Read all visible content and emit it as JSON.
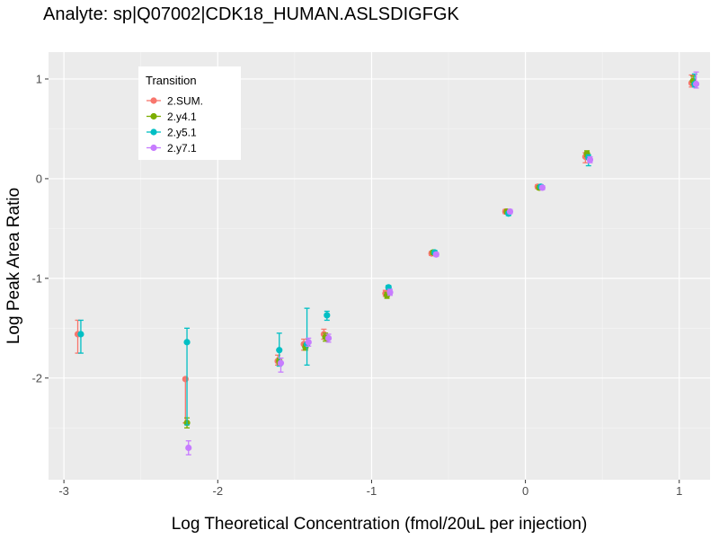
{
  "chart_data": {
    "type": "scatter",
    "title": "Analyte: sp|Q07002|CDK18_HUMAN.ASLSDIGFGK",
    "xlabel": "Log Theoretical Concentration (fmol/20uL per injection)",
    "ylabel": "Log Peak Area Ratio",
    "xlim": [
      -3.1,
      1.2
    ],
    "ylim": [
      -3.02,
      1.27
    ],
    "x_ticks": [
      -3,
      -2,
      -1,
      0,
      1
    ],
    "x_tick_labels": [
      "-3",
      "-2",
      "-1",
      "0",
      "1"
    ],
    "y_ticks": [
      -2,
      -1,
      0,
      1
    ],
    "y_tick_labels": [
      "-2",
      "-1",
      "0",
      "1"
    ],
    "grid": true,
    "legend_title": "Transition",
    "legend_position": "top-left",
    "series": [
      {
        "name": "2.SUM.",
        "color": "#F8766D",
        "points": [
          {
            "x": -2.91,
            "y": -1.56,
            "lo": -1.75,
            "hi": -1.42
          },
          {
            "x": -2.21,
            "y": -2.01,
            "lo": -2.45,
            "hi": -2.01
          },
          {
            "x": -1.61,
            "y": -1.83,
            "lo": -1.87,
            "hi": -1.77
          },
          {
            "x": -1.44,
            "y": -1.66,
            "lo": -1.72,
            "hi": -1.61
          },
          {
            "x": -1.31,
            "y": -1.56,
            "lo": -1.61,
            "hi": -1.51
          },
          {
            "x": -0.91,
            "y": -1.15,
            "lo": -1.18,
            "hi": -1.12
          },
          {
            "x": -0.61,
            "y": -0.75,
            "lo": -0.77,
            "hi": -0.73
          },
          {
            "x": -0.13,
            "y": -0.33,
            "lo": -0.35,
            "hi": -0.31
          },
          {
            "x": 0.08,
            "y": -0.08,
            "lo": -0.1,
            "hi": -0.06
          },
          {
            "x": 0.39,
            "y": 0.22,
            "lo": 0.16,
            "hi": 0.26
          },
          {
            "x": 1.08,
            "y": 0.96,
            "lo": 0.92,
            "hi": 1.04
          }
        ]
      },
      {
        "name": "2.y4.1",
        "color": "#7CAE00",
        "points": [
          {
            "x": -2.2,
            "y": -2.45,
            "lo": -2.5,
            "hi": -2.4
          },
          {
            "x": -1.6,
            "y": -1.83,
            "lo": -1.86,
            "hi": -1.8
          },
          {
            "x": -1.43,
            "y": -1.69,
            "lo": -1.72,
            "hi": -1.66
          },
          {
            "x": -1.3,
            "y": -1.59,
            "lo": -1.63,
            "hi": -1.55
          },
          {
            "x": -0.9,
            "y": -1.17,
            "lo": -1.2,
            "hi": -1.14
          },
          {
            "x": -0.6,
            "y": -0.74,
            "lo": -0.76,
            "hi": -0.72
          },
          {
            "x": -0.12,
            "y": -0.33,
            "lo": -0.35,
            "hi": -0.31
          },
          {
            "x": 0.09,
            "y": -0.09,
            "lo": -0.11,
            "hi": -0.07
          },
          {
            "x": 0.4,
            "y": 0.25,
            "lo": 0.22,
            "hi": 0.28
          },
          {
            "x": 1.09,
            "y": 0.98,
            "lo": 0.94,
            "hi": 1.03
          }
        ]
      },
      {
        "name": "2.y5.1",
        "color": "#00BFC4",
        "points": [
          {
            "x": -2.89,
            "y": -1.56,
            "lo": -1.75,
            "hi": -1.42
          },
          {
            "x": -2.2,
            "y": -1.64,
            "lo": -2.47,
            "hi": -1.5
          },
          {
            "x": -1.6,
            "y": -1.72,
            "lo": -1.88,
            "hi": -1.55
          },
          {
            "x": -1.42,
            "y": -1.66,
            "lo": -1.87,
            "hi": -1.3
          },
          {
            "x": -1.29,
            "y": -1.37,
            "lo": -1.42,
            "hi": -1.33
          },
          {
            "x": -0.89,
            "y": -1.09,
            "lo": -1.11,
            "hi": -1.07
          },
          {
            "x": -0.59,
            "y": -0.74,
            "lo": -0.76,
            "hi": -0.72
          },
          {
            "x": -0.11,
            "y": -0.35,
            "lo": -0.37,
            "hi": -0.33
          },
          {
            "x": 0.1,
            "y": -0.08,
            "lo": -0.1,
            "hi": -0.06
          },
          {
            "x": 0.41,
            "y": 0.21,
            "lo": 0.13,
            "hi": 0.24
          },
          {
            "x": 1.1,
            "y": 0.95,
            "lo": 0.92,
            "hi": 1.05
          }
        ]
      },
      {
        "name": "2.y7.1",
        "color": "#C77CFF",
        "points": [
          {
            "x": -2.19,
            "y": -2.7,
            "lo": -2.77,
            "hi": -2.63
          },
          {
            "x": -1.59,
            "y": -1.85,
            "lo": -1.94,
            "hi": -1.8
          },
          {
            "x": -1.41,
            "y": -1.64,
            "lo": -1.68,
            "hi": -1.6
          },
          {
            "x": -1.28,
            "y": -1.6,
            "lo": -1.64,
            "hi": -1.56
          },
          {
            "x": -0.88,
            "y": -1.14,
            "lo": -1.17,
            "hi": -1.11
          },
          {
            "x": -0.58,
            "y": -0.76,
            "lo": -0.78,
            "hi": -0.74
          },
          {
            "x": -0.1,
            "y": -0.33,
            "lo": -0.35,
            "hi": -0.31
          },
          {
            "x": 0.11,
            "y": -0.09,
            "lo": -0.11,
            "hi": -0.07
          },
          {
            "x": 0.42,
            "y": 0.19,
            "lo": 0.16,
            "hi": 0.22
          },
          {
            "x": 1.11,
            "y": 0.95,
            "lo": 0.91,
            "hi": 1.07
          }
        ]
      }
    ]
  }
}
